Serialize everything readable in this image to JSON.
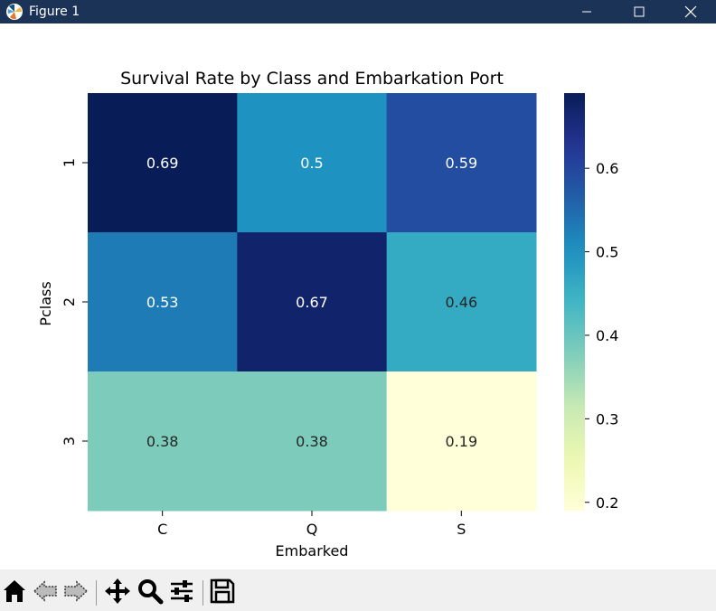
{
  "window": {
    "title": "Figure 1"
  },
  "toolbar": {
    "buttons": [
      "home-icon",
      "back-icon",
      "forward-icon",
      "pan-icon",
      "zoom-icon",
      "configure-icon",
      "save-icon"
    ]
  },
  "chart_data": {
    "type": "heatmap",
    "title": "Survival Rate by Class and Embarkation Port",
    "xlabel": "Embarked",
    "ylabel": "Pclass",
    "x_categories": [
      "C",
      "Q",
      "S"
    ],
    "y_categories": [
      "1",
      "2",
      "3"
    ],
    "values": [
      [
        0.69,
        0.5,
        0.59
      ],
      [
        0.53,
        0.67,
        0.46
      ],
      [
        0.38,
        0.38,
        0.19
      ]
    ],
    "annotations": [
      [
        "0.69",
        "0.5",
        "0.59"
      ],
      [
        "0.53",
        "0.67",
        "0.46"
      ],
      [
        "0.38",
        "0.38",
        "0.19"
      ]
    ],
    "colormap": "YlGnBu",
    "color_range": [
      0.19,
      0.69
    ],
    "colorbar": {
      "ticks": [
        0.2,
        0.3,
        0.4,
        0.5,
        0.6
      ],
      "tick_labels": [
        "0.2",
        "0.3",
        "0.4",
        "0.5",
        "0.6"
      ]
    }
  }
}
